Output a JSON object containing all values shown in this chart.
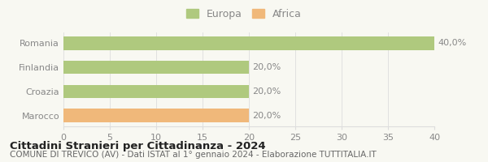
{
  "categories": [
    "Romania",
    "Finlandia",
    "Croazia",
    "Marocco"
  ],
  "values": [
    40,
    20,
    20,
    20
  ],
  "labels": [
    "40,0%",
    "20,0%",
    "20,0%",
    "20,0%"
  ],
  "bar_colors": [
    "#afc97e",
    "#afc97e",
    "#afc97e",
    "#f0b87a"
  ],
  "legend_entries": [
    {
      "label": "Europa",
      "color": "#afc97e"
    },
    {
      "label": "Africa",
      "color": "#f0b87a"
    }
  ],
  "xlim": [
    0,
    40
  ],
  "xticks": [
    0,
    5,
    10,
    15,
    20,
    25,
    30,
    35,
    40
  ],
  "title": "Cittadini Stranieri per Cittadinanza - 2024",
  "subtitle": "COMUNE DI TREVICO (AV) - Dati ISTAT al 1° gennaio 2024 - Elaborazione TUTTITALIA.IT",
  "background_color": "#f8f8f2",
  "bar_height": 0.55,
  "title_fontsize": 9.5,
  "subtitle_fontsize": 7.5,
  "tick_fontsize": 8,
  "label_fontsize": 8,
  "legend_fontsize": 9,
  "legend_color": "#888888",
  "yticklabel_color": "#888888",
  "xticklabel_color": "#888888",
  "value_label_color": "#888888",
  "grid_color": "#dddddd",
  "title_color": "#222222",
  "subtitle_color": "#666666"
}
